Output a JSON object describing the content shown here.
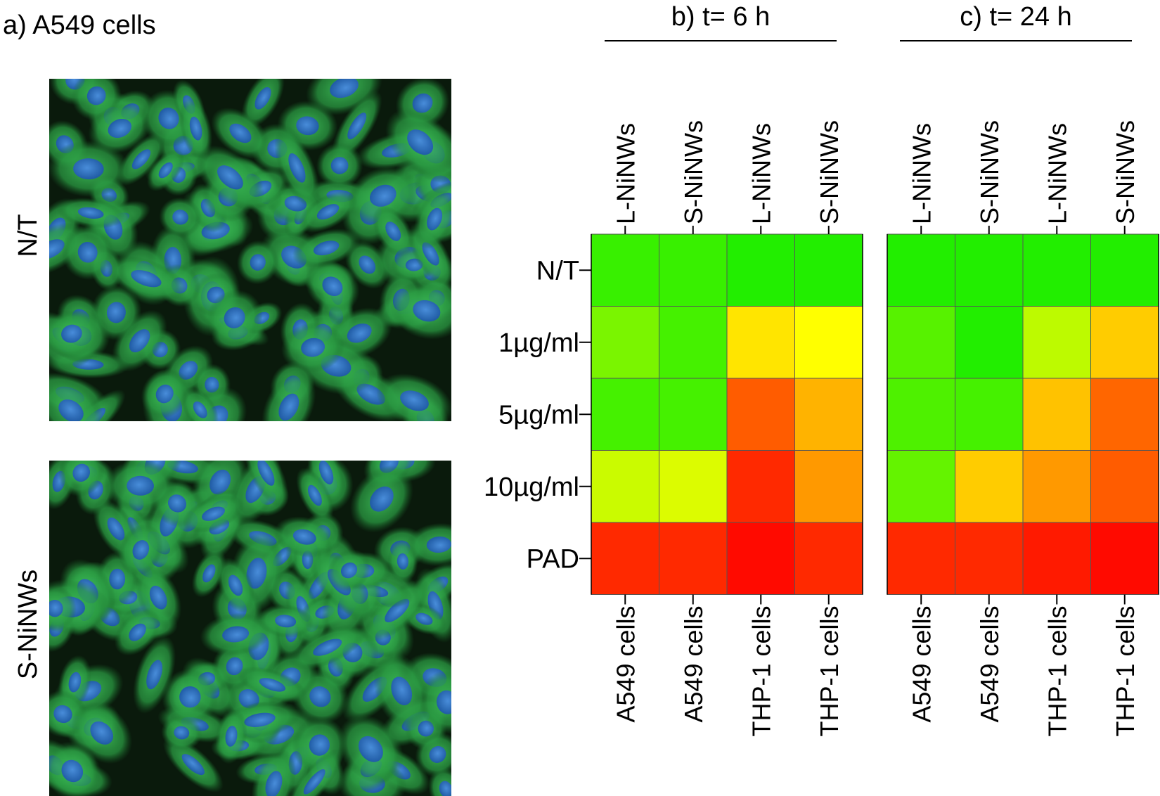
{
  "panel_a": {
    "title": "a) A549 cells",
    "images": [
      {
        "label": "N/T",
        "image_description": "fluorescence micrograph of untreated A549 cells"
      },
      {
        "label": "S-NiNWs",
        "image_description": "fluorescence micrograph of S-NiNWs treated A549 cells"
      }
    ]
  },
  "colors": {
    "nucleus": "#2f6fd0",
    "cytoplasm": "#2ea84a",
    "background": "#0a1a0c",
    "grid": "#555555"
  },
  "chart_data": [
    {
      "type": "heatmap",
      "title": "b) t= 6 h",
      "columns": [
        "L-NiNWs",
        "S-NiNWs",
        "L-NiNWs",
        "S-NiNWs"
      ],
      "column_groups": [
        "A549 cells",
        "A549 cells",
        "THP-1 cells",
        "THP-1 cells"
      ],
      "rows": [
        "N/T",
        "1µg/ml",
        "5µg/ml",
        "10µg/ml",
        "PAD"
      ],
      "values": [
        [
          0.05,
          0.05,
          0.0,
          0.0
        ],
        [
          0.2,
          0.08,
          0.55,
          0.5
        ],
        [
          0.08,
          0.08,
          0.82,
          0.65
        ],
        [
          0.38,
          0.42,
          0.92,
          0.7
        ],
        [
          0.92,
          0.92,
          0.98,
          0.92
        ]
      ],
      "colormap": [
        "#22ee00",
        "#ffff00",
        "#ff0000"
      ]
    },
    {
      "type": "heatmap",
      "title": "c) t= 24 h",
      "columns": [
        "L-NiNWs",
        "S-NiNWs",
        "L-NiNWs",
        "S-NiNWs"
      ],
      "column_groups": [
        "A549 cells",
        "A549 cells",
        "THP-1 cells",
        "THP-1 cells"
      ],
      "rows": [
        "N/T",
        "1µg/ml",
        "5µg/ml",
        "10µg/ml",
        "PAD"
      ],
      "values": [
        [
          0.0,
          0.0,
          0.0,
          0.0
        ],
        [
          0.12,
          0.0,
          0.35,
          0.6
        ],
        [
          0.1,
          0.08,
          0.62,
          0.8
        ],
        [
          0.15,
          0.6,
          0.7,
          0.82
        ],
        [
          0.92,
          0.92,
          0.95,
          0.98
        ]
      ],
      "colormap": [
        "#22ee00",
        "#ffff00",
        "#ff0000"
      ]
    }
  ]
}
